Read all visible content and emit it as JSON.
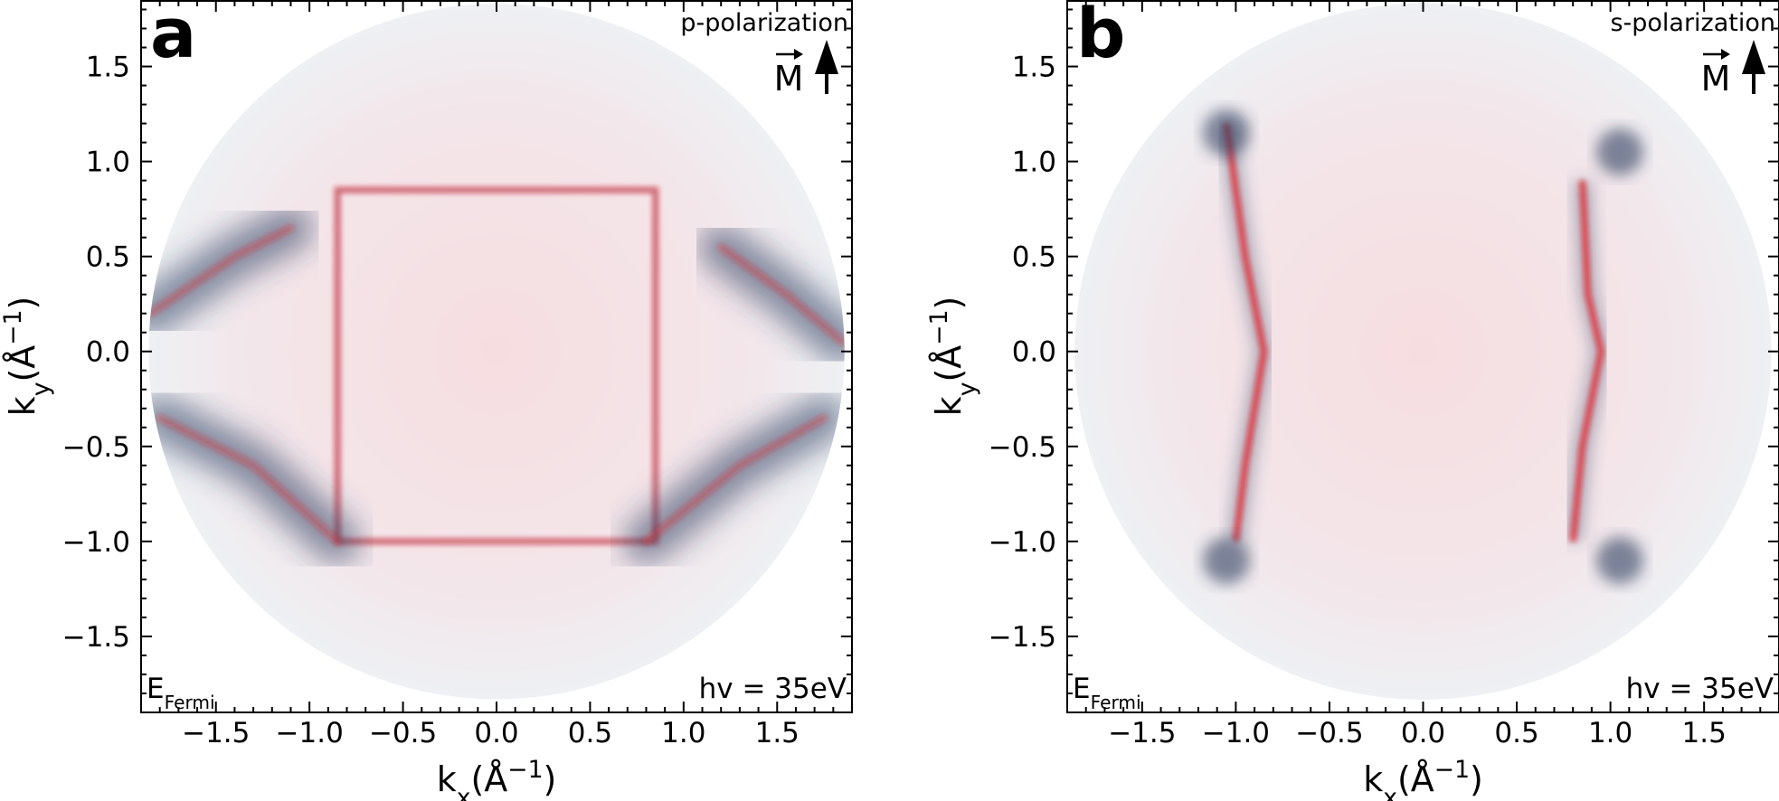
{
  "chart_data": [
    {
      "type": "heatmap",
      "panel_label": "a",
      "polarization": "p-polarization",
      "vector_label": "M",
      "arrow_direction": "up",
      "energy_label": "E",
      "energy_sub": "Fermi",
      "photon_energy": "hv = 35eV",
      "xlabel": "k",
      "xlabel_sub": "x",
      "xlabel_unit": "(Å",
      "xlabel_exp": "−1",
      "ylabel": "k",
      "ylabel_sub": "y",
      "ylabel_unit": "(Å",
      "ylabel_exp": "−1",
      "xlim": [
        -1.9,
        1.9
      ],
      "ylim": [
        -1.9,
        1.85
      ],
      "xticks": [
        -1.5,
        -1.0,
        -0.5,
        0.0,
        0.5,
        1.0,
        1.5
      ],
      "xtick_labels": [
        "−1.5",
        "−1.0",
        "−0.5",
        "0.0",
        "0.5",
        "1.0",
        "1.5"
      ],
      "yticks": [
        1.5,
        1.0,
        0.5,
        0.0,
        -0.5,
        -1.0,
        -1.5
      ],
      "ytick_labels": [
        "1.5",
        "1.0",
        "0.5",
        "0.0",
        "−0.5",
        "−1.0",
        "−1.5"
      ],
      "colors": {
        "negative": "#2b3b5e",
        "positive": "#e8141c"
      },
      "features": [
        {
          "kind": "square-contour",
          "corners": [
            [
              -0.85,
              0.85
            ],
            [
              0.85,
              0.85
            ],
            [
              0.85,
              -1.0
            ],
            [
              -0.85,
              -1.0
            ]
          ],
          "color": "positive"
        },
        {
          "kind": "diagonal-band",
          "points": [
            [
              -1.85,
              0.2
            ],
            [
              -1.4,
              0.5
            ],
            [
              -1.1,
              0.65
            ]
          ],
          "color": "negative"
        },
        {
          "kind": "diagonal-band",
          "points": [
            [
              1.2,
              0.55
            ],
            [
              1.55,
              0.3
            ],
            [
              1.85,
              0.05
            ]
          ],
          "color": "negative"
        },
        {
          "kind": "diagonal-band",
          "points": [
            [
              -1.8,
              -0.35
            ],
            [
              -1.3,
              -0.6
            ],
            [
              -0.85,
              -1.0
            ]
          ],
          "color": "negative"
        },
        {
          "kind": "diagonal-band",
          "points": [
            [
              1.75,
              -0.35
            ],
            [
              1.3,
              -0.6
            ],
            [
              0.8,
              -1.0
            ]
          ],
          "color": "negative"
        }
      ]
    },
    {
      "type": "heatmap",
      "panel_label": "b",
      "polarization": "s-polarization",
      "vector_label": "M",
      "arrow_direction": "up",
      "energy_label": "E",
      "energy_sub": "Fermi",
      "photon_energy": "hv = 35eV",
      "xlabel": "k",
      "xlabel_sub": "x",
      "xlabel_unit": "(Å",
      "xlabel_exp": "−1",
      "ylabel": "k",
      "ylabel_sub": "y",
      "ylabel_unit": "(Å",
      "ylabel_exp": "−1",
      "xlim": [
        -1.9,
        1.9
      ],
      "ylim": [
        -1.9,
        1.85
      ],
      "xticks": [
        -1.5,
        -1.0,
        -0.5,
        0.0,
        0.5,
        1.0,
        1.5
      ],
      "xtick_labels": [
        "−1.5",
        "−1.0",
        "−0.5",
        "0.0",
        "0.5",
        "1.0",
        "1.5"
      ],
      "yticks": [
        1.5,
        1.0,
        0.5,
        0.0,
        -0.5,
        -1.0,
        -1.5
      ],
      "ytick_labels": [
        "1.5",
        "1.0",
        "0.5",
        "0.0",
        "−0.5",
        "−1.0",
        "−1.5"
      ],
      "colors": {
        "negative": "#2b3b5e",
        "positive": "#e8141c"
      },
      "features": [
        {
          "kind": "vertical-contour",
          "points": [
            [
              -1.05,
              1.2
            ],
            [
              -0.95,
              0.5
            ],
            [
              -0.85,
              0.0
            ],
            [
              -0.95,
              -0.6
            ],
            [
              -1.0,
              -1.0
            ]
          ],
          "color": "positive"
        },
        {
          "kind": "vertical-contour",
          "points": [
            [
              0.85,
              0.9
            ],
            [
              0.88,
              0.3
            ],
            [
              0.95,
              0.0
            ],
            [
              0.85,
              -0.5
            ],
            [
              0.8,
              -1.0
            ]
          ],
          "color": "positive"
        },
        {
          "kind": "spot",
          "points": [
            [
              -1.05,
              1.15
            ],
            [
              1.05,
              1.05
            ],
            [
              -1.05,
              -1.1
            ],
            [
              1.05,
              -1.1
            ]
          ],
          "color": "negative"
        }
      ]
    }
  ]
}
